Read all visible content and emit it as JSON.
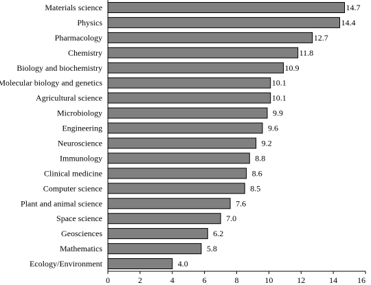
{
  "chart_data": {
    "type": "bar",
    "orientation": "horizontal",
    "categories": [
      "Materials science",
      "Physics",
      "Pharmacology",
      "Chemistry",
      "Biology and biochemistry",
      "Molecular biology and genetics",
      "Agricultural science",
      "Microbiology",
      "Engineering",
      "Neuroscience",
      "Immunology",
      "Clinical medicine",
      "Computer science",
      "Plant and animal science",
      "Space science",
      "Geosciences",
      "Mathematics",
      "Ecology/Environment"
    ],
    "values": [
      14.7,
      14.4,
      12.7,
      11.8,
      10.9,
      10.1,
      10.1,
      9.9,
      9.6,
      9.2,
      8.8,
      8.6,
      8.5,
      7.6,
      7.0,
      6.2,
      5.8,
      4.0
    ],
    "value_labels": [
      "14.7",
      "14.4",
      "12.7",
      "11.8",
      "10.9",
      "10.1",
      "10.1",
      "9.9",
      "9.6",
      "9.2",
      "8.8",
      "8.6",
      "8.5",
      "7.6",
      "7.0",
      "6.2",
      "5.8",
      "4.0"
    ],
    "xlim": [
      0,
      16
    ],
    "xticks": [
      0,
      2,
      4,
      6,
      8,
      10,
      12,
      14,
      16
    ],
    "title": "",
    "xlabel": "",
    "ylabel": "",
    "grid": false,
    "legend": "none",
    "bar_color": "#808080",
    "bar_stroke": "#000000"
  }
}
